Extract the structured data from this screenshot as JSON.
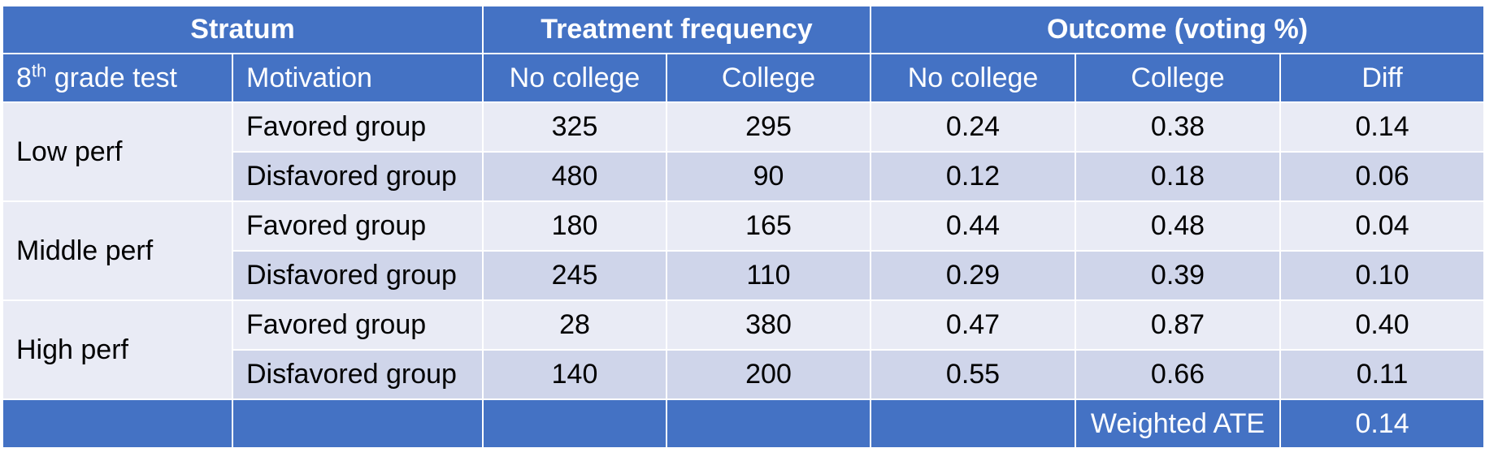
{
  "group_headers": {
    "stratum": "Stratum",
    "treatment": "Treatment frequency",
    "outcome": "Outcome (voting %)"
  },
  "column_headers": {
    "grade_test_sup": "th",
    "grade_test_prefix": "8",
    "grade_test_suffix": " grade test",
    "motivation": "Motivation",
    "treat_no_college": "No college",
    "treat_college": "College",
    "out_no_college": "No college",
    "out_college": "College",
    "diff": "Diff"
  },
  "strata": [
    {
      "label": "Low perf",
      "rows": [
        {
          "motivation": "Favored group",
          "treat_no_college": "325",
          "treat_college": "295",
          "out_no_college": "0.24",
          "out_college": "0.38",
          "diff": "0.14"
        },
        {
          "motivation": "Disfavored group",
          "treat_no_college": "480",
          "treat_college": "90",
          "out_no_college": "0.12",
          "out_college": "0.18",
          "diff": "0.06"
        }
      ]
    },
    {
      "label": "Middle perf",
      "rows": [
        {
          "motivation": "Favored group",
          "treat_no_college": "180",
          "treat_college": "165",
          "out_no_college": "0.44",
          "out_college": "0.48",
          "diff": "0.04"
        },
        {
          "motivation": "Disfavored group",
          "treat_no_college": "245",
          "treat_college": "110",
          "out_no_college": "0.29",
          "out_college": "0.39",
          "diff": "0.10"
        }
      ]
    },
    {
      "label": "High perf",
      "rows": [
        {
          "motivation": "Favored group",
          "treat_no_college": "28",
          "treat_college": "380",
          "out_no_college": "0.47",
          "out_college": "0.87",
          "diff": "0.40"
        },
        {
          "motivation": "Disfavored group",
          "treat_no_college": "140",
          "treat_college": "200",
          "out_no_college": "0.55",
          "out_college": "0.66",
          "diff": "0.11"
        }
      ]
    }
  ],
  "footer": {
    "label": "Weighted ATE",
    "value": "0.14"
  },
  "colors": {
    "header": "#4472c4",
    "band_light": "#e9ebf5",
    "band_dark": "#cfd5ea"
  }
}
